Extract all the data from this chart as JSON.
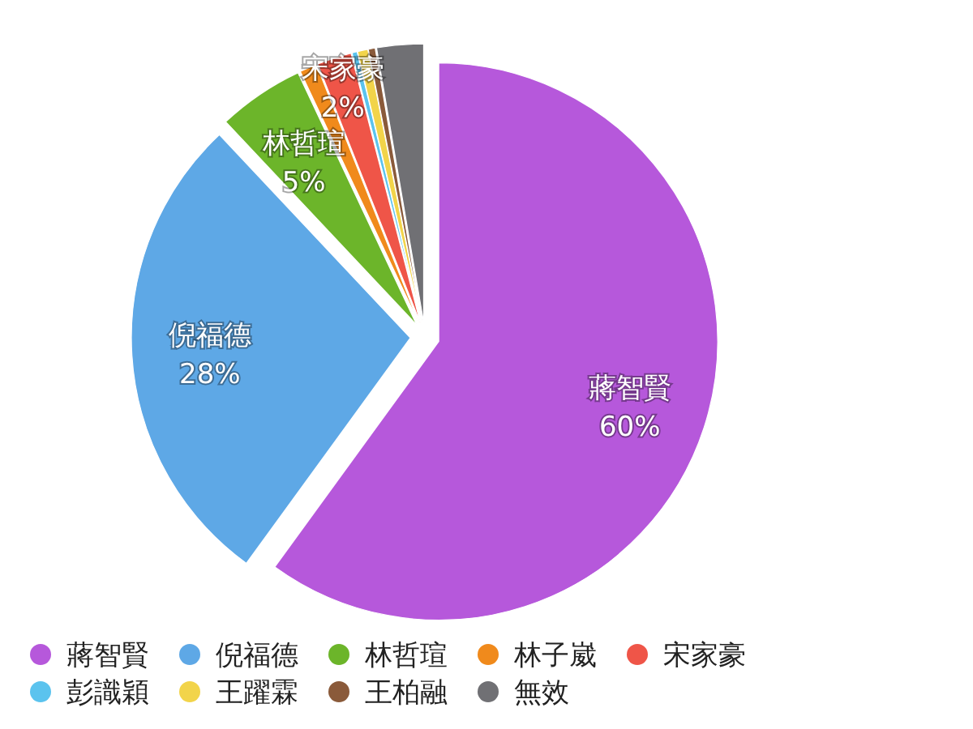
{
  "chart_data": {
    "type": "pie",
    "categories": [
      "蔣智賢",
      "倪福德",
      "林哲瑄",
      "林子崴",
      "宋家豪",
      "彭識穎",
      "王躍霖",
      "王柏融",
      "無效"
    ],
    "values": [
      60,
      28,
      5,
      1,
      2,
      0.3,
      0.6,
      0.4,
      2.7
    ],
    "colors": [
      "#b658db",
      "#5ea8e6",
      "#6cb52a",
      "#f08a1c",
      "#ef5548",
      "#5bc3ee",
      "#f2d44a",
      "#8a5a3a",
      "#707074"
    ],
    "value_labels": [
      "60%",
      "28%",
      "5%",
      null,
      "2%",
      null,
      null,
      null,
      null
    ],
    "legend": "bottom"
  }
}
